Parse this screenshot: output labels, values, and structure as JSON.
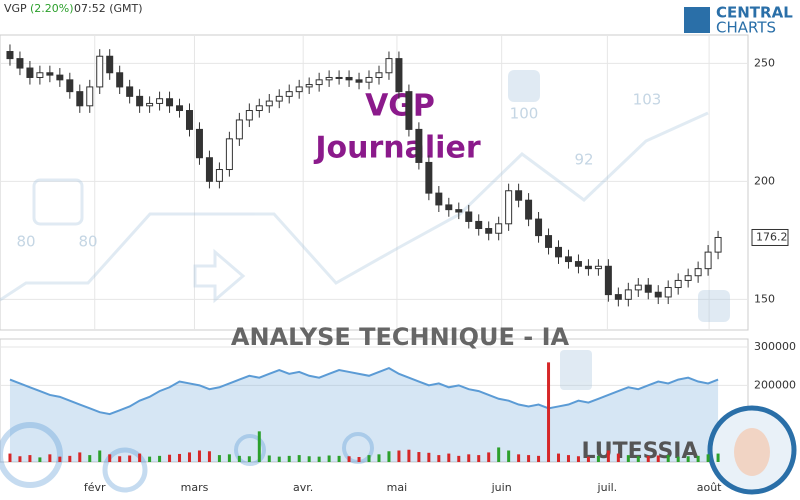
{
  "header": {
    "symbol": "VGP",
    "change": "(2.20%)",
    "time": "07:52 (GMT)"
  },
  "logo": {
    "line1": "CENTRAL",
    "line2": "CHARTS"
  },
  "watermark": {
    "title": "VGP",
    "period": "Journalier",
    "banner": "ANALYSE TECHNIQUE - IA",
    "brand": "LUTESSIA",
    "labels": [
      "80",
      "80",
      "100",
      "92",
      "103"
    ]
  },
  "chart_data": [
    {
      "type": "candlestick",
      "xlim": [
        -1,
        74
      ],
      "xticks": [
        {
          "value": 8.5,
          "label": "févr"
        },
        {
          "value": 18.5,
          "label": "mars"
        },
        {
          "value": 29.4,
          "label": "avr."
        },
        {
          "value": 38.8,
          "label": "mai"
        },
        {
          "value": 49.3,
          "label": "juin"
        },
        {
          "value": 59.9,
          "label": "juil."
        },
        {
          "value": 70.1,
          "label": "août"
        }
      ],
      "ylim": [
        137,
        262
      ],
      "yticks": [
        150,
        200,
        250
      ],
      "grid": true,
      "up_color": "#333333",
      "down_color": "#333333",
      "open": [
        255,
        252,
        248,
        244,
        246,
        245,
        243,
        238,
        232,
        240,
        253,
        246,
        240,
        236,
        232,
        233,
        235,
        232,
        230,
        222,
        210,
        200,
        205,
        218,
        226,
        230,
        232,
        234,
        236,
        238,
        240,
        241,
        243,
        244,
        244,
        243,
        242,
        244,
        246,
        252,
        238,
        222,
        208,
        195,
        190,
        188,
        187,
        183,
        180,
        178,
        182,
        196,
        192,
        184,
        177,
        172,
        168,
        166,
        164,
        163,
        164,
        152,
        150,
        154,
        156,
        153,
        151,
        155,
        158,
        160,
        163,
        170
      ],
      "high": [
        258,
        255,
        251,
        249,
        249,
        248,
        246,
        241,
        243,
        256,
        256,
        249,
        243,
        239,
        236,
        238,
        238,
        235,
        233,
        225,
        213,
        208,
        221,
        229,
        233,
        235,
        237,
        239,
        241,
        243,
        244,
        246,
        247,
        247,
        247,
        246,
        247,
        249,
        255,
        255,
        241,
        225,
        211,
        198,
        193,
        191,
        190,
        186,
        183,
        185,
        199,
        199,
        195,
        187,
        180,
        175,
        171,
        169,
        167,
        167,
        167,
        155,
        157,
        159,
        159,
        156,
        158,
        161,
        163,
        166,
        173,
        179
      ],
      "low": [
        249,
        245,
        241,
        241,
        242,
        240,
        235,
        229,
        229,
        237,
        243,
        237,
        233,
        229,
        229,
        230,
        229,
        227,
        219,
        207,
        197,
        197,
        202,
        215,
        223,
        227,
        229,
        231,
        233,
        235,
        237,
        238,
        240,
        241,
        240,
        239,
        239,
        241,
        243,
        235,
        219,
        205,
        192,
        187,
        185,
        184,
        180,
        177,
        175,
        175,
        179,
        189,
        181,
        174,
        169,
        165,
        163,
        161,
        160,
        160,
        149,
        147,
        147,
        151,
        150,
        148,
        148,
        152,
        155,
        157,
        160,
        167
      ],
      "close": [
        252,
        248,
        244,
        246,
        245,
        243,
        238,
        232,
        240,
        253,
        246,
        240,
        236,
        232,
        233,
        235,
        232,
        230,
        222,
        210,
        200,
        205,
        218,
        226,
        230,
        232,
        234,
        236,
        238,
        240,
        241,
        243,
        244,
        244,
        243,
        242,
        244,
        246,
        252,
        238,
        222,
        208,
        195,
        190,
        188,
        187,
        183,
        180,
        178,
        182,
        196,
        192,
        184,
        177,
        172,
        168,
        166,
        164,
        163,
        164,
        152,
        150,
        154,
        156,
        153,
        151,
        155,
        158,
        160,
        163,
        170,
        176.2
      ]
    },
    {
      "type": "volume",
      "xlim": [
        -1,
        74
      ],
      "ylim": [
        0,
        321000
      ],
      "yticks": [
        200000,
        300000
      ],
      "area_color": "#5b9bd5",
      "up_color": "#2ca02c",
      "down_color": "#d62728",
      "area": [
        215000,
        205000,
        195000,
        185000,
        175000,
        170000,
        160000,
        150000,
        140000,
        130000,
        125000,
        135000,
        145000,
        160000,
        170000,
        185000,
        195000,
        210000,
        205000,
        200000,
        190000,
        195000,
        205000,
        215000,
        225000,
        220000,
        230000,
        240000,
        230000,
        235000,
        225000,
        220000,
        230000,
        240000,
        235000,
        230000,
        225000,
        235000,
        245000,
        230000,
        220000,
        210000,
        200000,
        205000,
        195000,
        200000,
        190000,
        185000,
        175000,
        165000,
        160000,
        150000,
        145000,
        150000,
        140000,
        145000,
        150000,
        160000,
        155000,
        165000,
        175000,
        185000,
        195000,
        190000,
        200000,
        210000,
        205000,
        215000,
        220000,
        210000,
        205000,
        215000
      ],
      "values": [
        22000,
        15000,
        18000,
        12000,
        20000,
        14000,
        16000,
        25000,
        18000,
        30000,
        20000,
        15000,
        17000,
        22000,
        14000,
        16000,
        19000,
        21000,
        25000,
        30000,
        28000,
        18000,
        20000,
        16000,
        15000,
        80000,
        17000,
        14000,
        16000,
        18000,
        15000,
        14000,
        17000,
        16000,
        15000,
        13000,
        18000,
        20000,
        28000,
        30000,
        32000,
        26000,
        24000,
        18000,
        22000,
        16000,
        20000,
        18000,
        25000,
        38000,
        30000,
        20000,
        18000,
        16000,
        260000,
        22000,
        18000,
        15000,
        14000,
        16000,
        30000,
        22000,
        18000,
        15000,
        16000,
        17000,
        18000,
        14000,
        15000,
        16000,
        20000,
        22000
      ]
    }
  ]
}
